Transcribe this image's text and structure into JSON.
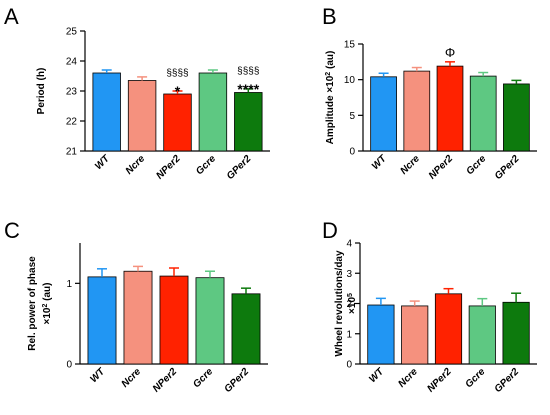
{
  "chart_data": [
    {
      "type": "bar",
      "panel": "A",
      "categories": [
        "WT",
        "Ncre",
        "NPer2",
        "Gcre",
        "GPer2"
      ],
      "values": [
        23.6,
        23.35,
        22.9,
        23.6,
        22.95
      ],
      "errors": [
        0.1,
        0.12,
        0.1,
        0.1,
        0.12
      ],
      "colors": [
        "#2196f3",
        "#f5917e",
        "#ff2200",
        "#5ec882",
        "#0d7a0d"
      ],
      "ylabel": "Period (h)",
      "ylabel_parts": [],
      "ylim": [
        21,
        25
      ],
      "yticks": [
        21,
        22,
        23,
        24,
        25
      ],
      "annotations": [
        {
          "category": "NPer2",
          "text": "§§§§",
          "style": "small"
        },
        {
          "category": "NPer2",
          "text": "*",
          "style": "big"
        },
        {
          "category": "GPer2",
          "text": "§§§§",
          "style": "small"
        },
        {
          "category": "GPer2",
          "text": "****",
          "style": "big"
        }
      ]
    },
    {
      "type": "bar",
      "panel": "B",
      "categories": [
        "WT",
        "Ncre",
        "NPer2",
        "Gcre",
        "GPer2"
      ],
      "values": [
        10.4,
        11.2,
        11.9,
        10.5,
        9.4
      ],
      "errors": [
        0.5,
        0.5,
        0.6,
        0.5,
        0.5
      ],
      "colors": [
        "#2196f3",
        "#f5917e",
        "#ff2200",
        "#5ec882",
        "#0d7a0d"
      ],
      "ylabel": "",
      "ylabel_parts": [
        "Amplitude ×10",
        "2",
        " (au)"
      ],
      "ylim": [
        0,
        15
      ],
      "yticks": [
        0,
        5,
        10,
        15
      ],
      "annotations": [
        {
          "category": "NPer2",
          "text": "Φ",
          "style": "phi"
        }
      ]
    },
    {
      "type": "bar",
      "panel": "C",
      "categories": [
        "WT",
        "Ncre",
        "NPer2",
        "Gcre",
        "GPer2"
      ],
      "values": [
        1.08,
        1.15,
        1.09,
        1.07,
        0.87
      ],
      "errors": [
        0.1,
        0.06,
        0.1,
        0.08,
        0.07
      ],
      "colors": [
        "#2196f3",
        "#f5917e",
        "#ff2200",
        "#5ec882",
        "#0d7a0d"
      ],
      "ylabel": "Rel. power of phase",
      "ylabel_parts": [
        "×10",
        "2",
        " (au)"
      ],
      "ylim": [
        0,
        1.5
      ],
      "yticks": [
        0,
        1
      ],
      "annotations": []
    },
    {
      "type": "bar",
      "panel": "D",
      "categories": [
        "WT",
        "Ncre",
        "NPer2",
        "Gcre",
        "GPer2"
      ],
      "values": [
        1.95,
        1.92,
        2.32,
        1.92,
        2.04
      ],
      "errors": [
        0.22,
        0.16,
        0.17,
        0.24,
        0.3
      ],
      "colors": [
        "#2196f3",
        "#f5917e",
        "#ff2200",
        "#5ec882",
        "#0d7a0d"
      ],
      "ylabel": "Wheel revolutions/day",
      "ylabel_parts": [
        "×10",
        "5",
        ""
      ],
      "ylim": [
        0,
        4
      ],
      "yticks": [
        0,
        1,
        2,
        3,
        4
      ],
      "annotations": []
    }
  ]
}
